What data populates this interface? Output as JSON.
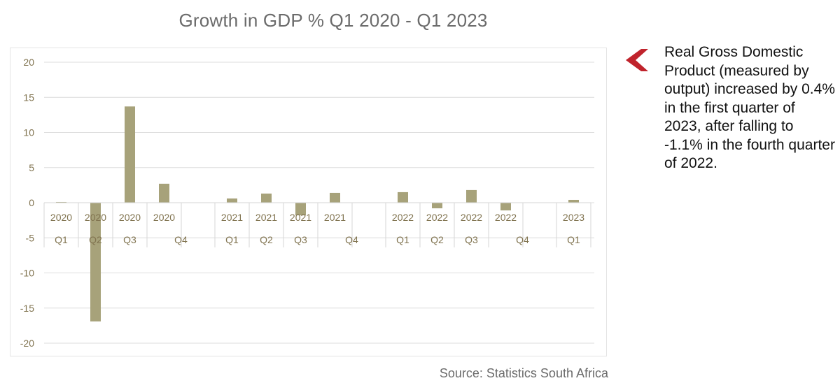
{
  "chart_data": {
    "type": "bar",
    "title": "Growth in GDP % Q1 2020 - Q1 2023",
    "xlabel": "",
    "ylabel": "",
    "ylim": [
      -20,
      20
    ],
    "yticks": [
      20,
      15,
      10,
      5,
      0,
      -5,
      -10,
      -15,
      -20
    ],
    "grid": true,
    "legend": "none",
    "bar_color": "#a7a27a",
    "label_color": "#80734f",
    "groups": [
      {
        "year": "2020",
        "quarters": [
          {
            "label": "Q1",
            "value": 0.1
          },
          {
            "label": "Q2",
            "value": -16.9
          },
          {
            "label": "Q3",
            "value": 13.7
          },
          {
            "label": "Q4",
            "value": 2.7
          }
        ]
      },
      {
        "year": "2021",
        "quarters": [
          {
            "label": "Q1",
            "value": 0.6
          },
          {
            "label": "Q2",
            "value": 1.3
          },
          {
            "label": "Q3",
            "value": -1.8
          },
          {
            "label": "Q4",
            "value": 1.4
          }
        ]
      },
      {
        "year": "2022",
        "quarters": [
          {
            "label": "Q1",
            "value": 1.5
          },
          {
            "label": "Q2",
            "value": -0.8
          },
          {
            "label": "Q3",
            "value": 1.8
          },
          {
            "label": "Q4",
            "value": -1.1
          }
        ]
      },
      {
        "year": "2023",
        "quarters": [
          {
            "label": "Q1",
            "value": 0.4
          }
        ]
      }
    ]
  },
  "source": "Source: Statistics South Africa",
  "callout": {
    "icon": "chevron-left-icon",
    "icon_color": "#c0232c",
    "text": "Real Gross Domestic Product (measured by output) increased by 0.4% in the first quarter of 2023, after falling to -1.1% in the fourth quarter of 2022."
  }
}
